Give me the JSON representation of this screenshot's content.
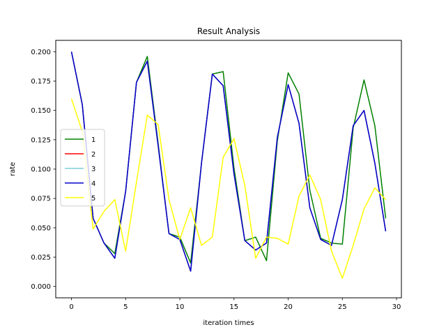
{
  "chart_data": {
    "type": "line",
    "title": "Result Analysis",
    "xlabel": "iteration times",
    "ylabel": "rate",
    "xlim": [
      -1.45,
      30.45
    ],
    "ylim": [
      -0.0097,
      0.2097
    ],
    "xticks": [
      0,
      5,
      10,
      15,
      20,
      25,
      30
    ],
    "xtick_labels": [
      "0",
      "5",
      "10",
      "15",
      "20",
      "25",
      "30"
    ],
    "yticks": [
      0.0,
      0.025,
      0.05,
      0.075,
      0.1,
      0.125,
      0.15,
      0.175,
      0.2
    ],
    "ytick_labels": [
      "0.000",
      "0.025",
      "0.050",
      "0.075",
      "0.100",
      "0.125",
      "0.150",
      "0.175",
      "0.200"
    ],
    "grid": false,
    "legend_position": "center-left",
    "x": [
      0,
      1,
      2,
      3,
      4,
      5,
      6,
      7,
      8,
      9,
      10,
      11,
      12,
      13,
      14,
      15,
      16,
      17,
      18,
      19,
      20,
      21,
      22,
      23,
      24,
      25,
      26,
      27,
      28,
      29
    ],
    "series": [
      {
        "name": "1",
        "color": "#008000",
        "values": [
          0.2,
          0.155,
          0.058,
          0.037,
          0.028,
          0.081,
          0.174,
          0.196,
          0.122,
          0.045,
          0.042,
          0.02,
          0.105,
          0.181,
          0.183,
          0.101,
          0.039,
          0.042,
          0.022,
          0.124,
          0.182,
          0.164,
          0.082,
          0.041,
          0.037,
          0.036,
          0.135,
          0.176,
          0.137,
          0.058
        ]
      },
      {
        "name": "2",
        "color": "#ff0000",
        "values": [
          0.2,
          0.155,
          0.058,
          0.037,
          0.024,
          0.081,
          0.174,
          0.192,
          0.12,
          0.045,
          0.04,
          0.013,
          0.105,
          0.181,
          0.171,
          0.096,
          0.039,
          0.031,
          0.037,
          0.127,
          0.172,
          0.139,
          0.067,
          0.04,
          0.035,
          0.074,
          0.137,
          0.15,
          0.105,
          0.047
        ]
      },
      {
        "name": "3",
        "color": "#7ccfd6",
        "values": [
          0.2,
          0.155,
          0.058,
          0.037,
          0.024,
          0.081,
          0.174,
          0.192,
          0.12,
          0.045,
          0.04,
          0.013,
          0.105,
          0.181,
          0.171,
          0.096,
          0.039,
          0.031,
          0.037,
          0.127,
          0.172,
          0.139,
          0.067,
          0.04,
          0.035,
          0.074,
          0.137,
          0.15,
          0.105,
          0.047
        ]
      },
      {
        "name": "4",
        "color": "#0000cc",
        "values": [
          0.2,
          0.155,
          0.058,
          0.037,
          0.024,
          0.081,
          0.174,
          0.192,
          0.12,
          0.045,
          0.04,
          0.013,
          0.105,
          0.181,
          0.171,
          0.096,
          0.039,
          0.031,
          0.037,
          0.127,
          0.172,
          0.139,
          0.067,
          0.04,
          0.035,
          0.074,
          0.137,
          0.15,
          0.105,
          0.047
        ]
      },
      {
        "name": "5",
        "color": "#ffff00",
        "values": [
          0.16,
          0.132,
          0.049,
          0.064,
          0.074,
          0.03,
          0.089,
          0.146,
          0.138,
          0.074,
          0.04,
          0.067,
          0.035,
          0.042,
          0.11,
          0.126,
          0.086,
          0.024,
          0.042,
          0.041,
          0.036,
          0.077,
          0.095,
          0.074,
          0.03,
          0.007,
          0.035,
          0.066,
          0.084,
          0.074
        ]
      }
    ]
  }
}
